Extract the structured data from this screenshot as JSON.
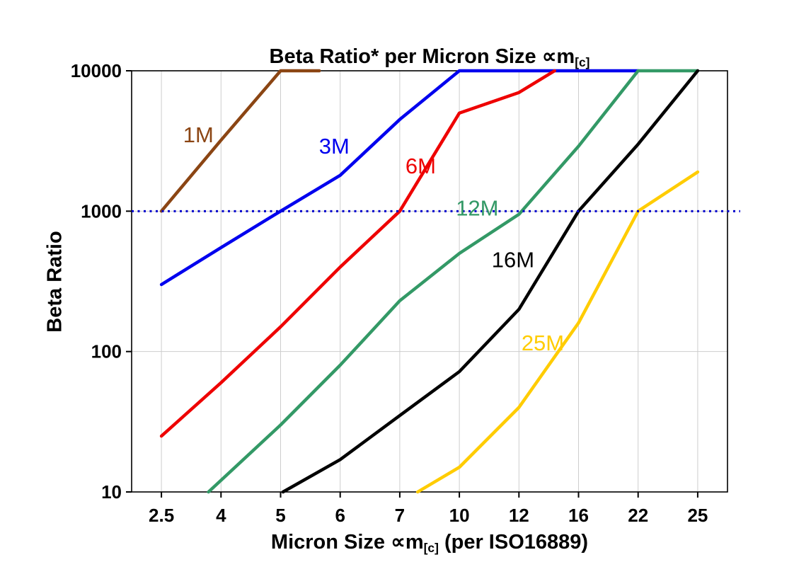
{
  "title": {
    "prefix": "Beta Ratio* per Micron Size ",
    "symbol": "∝m",
    "subscript": "[c]"
  },
  "x_axis_title": {
    "prefix": "Micron Size ",
    "symbol": "∝m",
    "subscript": "[c]",
    "suffix": " (per ISO16889)"
  },
  "y_axis_title": "Beta Ratio",
  "chart_data": {
    "type": "line",
    "title": "Beta Ratio* per Micron Size um[c]",
    "xlabel": "Micron Size um[c] (per ISO16889)",
    "ylabel": "Beta Ratio",
    "x_categories": [
      2.5,
      4,
      5,
      6,
      7,
      10,
      12,
      16,
      22,
      25
    ],
    "x_tick_labels": [
      "2.5",
      "4",
      "5",
      "6",
      "7",
      "10",
      "12",
      "16",
      "22",
      "25"
    ],
    "y_tick_labels": [
      "10000",
      "1000",
      "100",
      "10"
    ],
    "y_scale": "log",
    "ylim": [
      10,
      10000
    ],
    "grid": {
      "vertical": true,
      "color": "#CDCDCD"
    },
    "y_grid_values": [
      100,
      1000
    ],
    "reference_line": {
      "y": 1000,
      "color": "#0000CC",
      "style": "dotted"
    },
    "legend_position": "inline-labels",
    "series": [
      {
        "name": "1M",
        "color": "#8B4513",
        "points": [
          [
            0,
            1000
          ],
          [
            1,
            3200
          ],
          [
            2,
            10000
          ],
          [
            2.65,
            10000
          ]
        ],
        "label": {
          "text": "1M",
          "xi": 0.62,
          "y": 3500
        }
      },
      {
        "name": "3M",
        "color": "#0000EE",
        "points": [
          [
            0,
            300
          ],
          [
            1,
            550
          ],
          [
            2,
            1000
          ],
          [
            3,
            1800
          ],
          [
            4,
            4500
          ],
          [
            5,
            10000
          ],
          [
            8,
            10000
          ]
        ],
        "label": {
          "text": "3M",
          "xi": 2.9,
          "y": 2900
        }
      },
      {
        "name": "6M",
        "color": "#EE0000",
        "points": [
          [
            0,
            25
          ],
          [
            1,
            60
          ],
          [
            2,
            150
          ],
          [
            3,
            400
          ],
          [
            4,
            1000
          ],
          [
            5,
            5000
          ],
          [
            6,
            7000
          ],
          [
            6.6,
            10000
          ]
        ],
        "label": {
          "text": "6M",
          "xi": 4.35,
          "y": 2100
        }
      },
      {
        "name": "12M",
        "color": "#339966",
        "points": [
          [
            0.79,
            10
          ],
          [
            2,
            30
          ],
          [
            3,
            80
          ],
          [
            4,
            230
          ],
          [
            5,
            500
          ],
          [
            6,
            950
          ],
          [
            7,
            2900
          ],
          [
            8,
            10000
          ],
          [
            9,
            10000
          ]
        ],
        "label": {
          "text": "12M",
          "xi": 5.3,
          "y": 1050
        }
      },
      {
        "name": "16M",
        "color": "#000000",
        "points": [
          [
            2.04,
            10
          ],
          [
            3,
            17
          ],
          [
            4,
            35
          ],
          [
            5,
            72
          ],
          [
            6,
            200
          ],
          [
            7,
            1000
          ],
          [
            8,
            3000
          ],
          [
            9,
            10000
          ]
        ],
        "label": {
          "text": "16M",
          "xi": 5.9,
          "y": 450
        }
      },
      {
        "name": "25M",
        "color": "#FFCC00",
        "points": [
          [
            4.3,
            10
          ],
          [
            5,
            15
          ],
          [
            6,
            40
          ],
          [
            7,
            160
          ],
          [
            8,
            1000
          ],
          [
            9,
            1900
          ]
        ],
        "label": {
          "text": "25M",
          "xi": 6.4,
          "y": 115
        }
      }
    ]
  }
}
